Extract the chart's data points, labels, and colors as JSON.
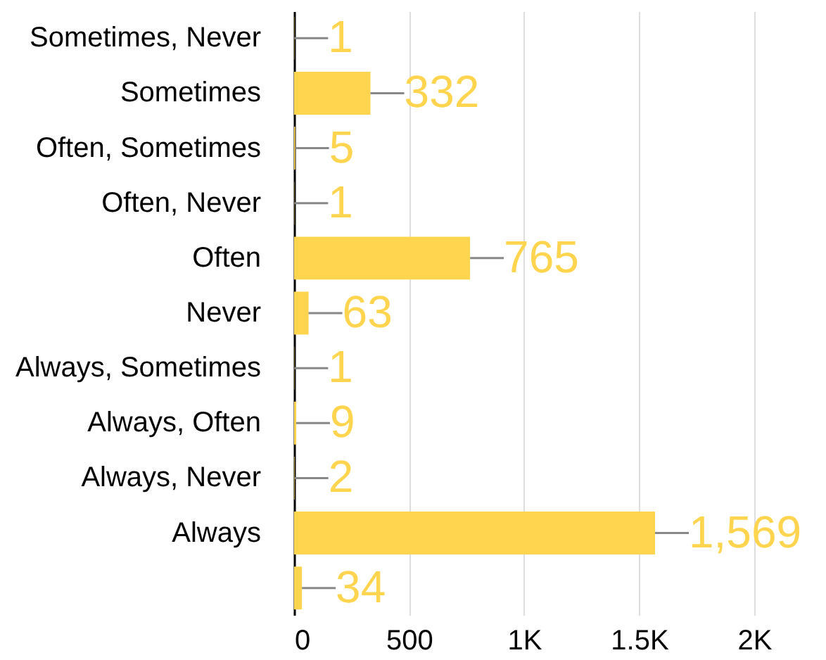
{
  "chart_data": {
    "type": "bar",
    "orientation": "horizontal",
    "categories": [
      "Sometimes, Never",
      "Sometimes",
      "Often, Sometimes",
      "Often, Never",
      "Often",
      "Never",
      "Always, Sometimes",
      "Always, Often",
      "Always, Never",
      "Always",
      null
    ],
    "values": [
      1,
      332,
      5,
      1,
      765,
      63,
      1,
      9,
      2,
      1569,
      34
    ],
    "color": "#ffd54f",
    "xlim": [
      0,
      2300
    ],
    "xticks": [
      0,
      500,
      {
        "value": 1000,
        "label": "1K"
      },
      {
        "value": 1500,
        "label": "1.5K"
      },
      {
        "value": 2000,
        "label": "2K"
      }
    ],
    "value_labels": [
      "1",
      "332",
      "5",
      "1",
      "765",
      "63",
      "1",
      "9",
      "2",
      "1,569",
      "34"
    ],
    "grid": "x"
  }
}
